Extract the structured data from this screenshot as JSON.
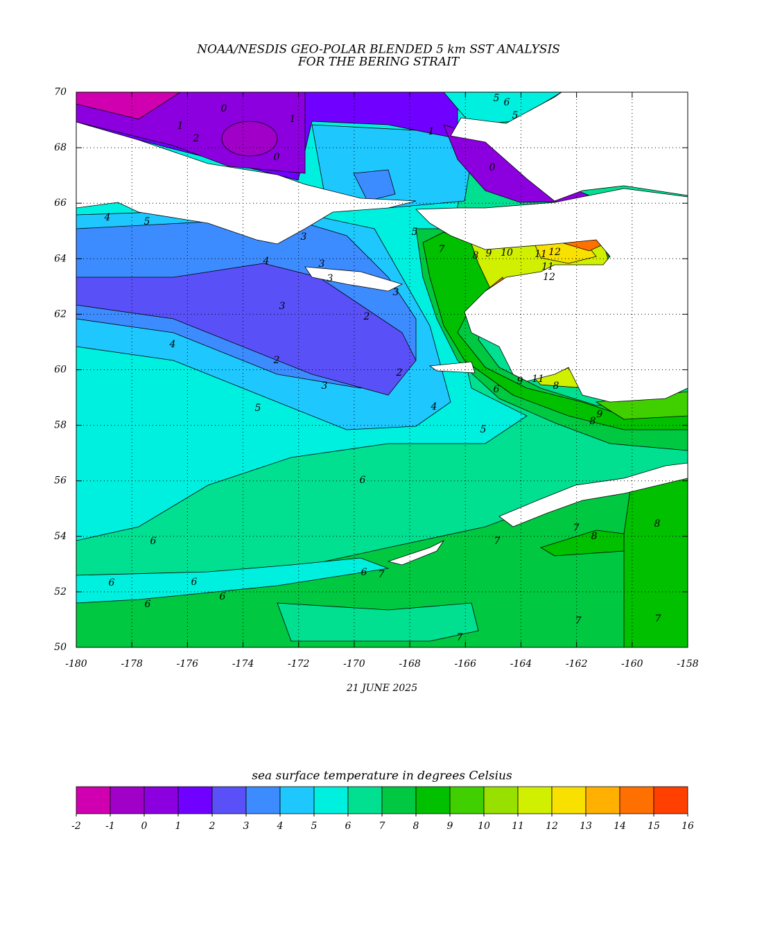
{
  "chart_data": {
    "type": "contour_map",
    "title": "NOAA/NESDIS GEO-POLAR BLENDED 5 km SST ANALYSIS",
    "subtitle": "FOR THE BERING STRAIT",
    "date": "21 JUNE 2025",
    "xlim": [
      -180,
      -158
    ],
    "ylim": [
      50,
      70
    ],
    "xticks": [
      -180,
      -178,
      -176,
      -174,
      -172,
      -170,
      -168,
      -166,
      -164,
      -162,
      -160,
      -158
    ],
    "yticks": [
      50,
      52,
      54,
      56,
      58,
      60,
      62,
      64,
      66,
      68,
      70
    ],
    "grid": true,
    "colorbar": {
      "label": "sea surface temperature in degrees Celsius",
      "levels": [
        -2,
        -1,
        0,
        1,
        2,
        3,
        4,
        5,
        6,
        7,
        8,
        9,
        10,
        11,
        12,
        13,
        14,
        15,
        16
      ],
      "colors": [
        "#d000b0",
        "#a000c8",
        "#8c00e0",
        "#7000ff",
        "#5a50f8",
        "#3c8cff",
        "#1ec8ff",
        "#00f0e0",
        "#00e090",
        "#00c840",
        "#00c000",
        "#40d000",
        "#98e000",
        "#d0f000",
        "#f8e000",
        "#ffb000",
        "#ff7000",
        "#ff4000"
      ]
    },
    "contour_labels": [
      0,
      1,
      1,
      2,
      0,
      1,
      5,
      6,
      5,
      0,
      4,
      5,
      3,
      4,
      3,
      3,
      3,
      3,
      2,
      4,
      2,
      2,
      3,
      4,
      5,
      5,
      6,
      6,
      6,
      6,
      6,
      6,
      6,
      7,
      7,
      7,
      8,
      8,
      7,
      7,
      7,
      5,
      7,
      8,
      9,
      10,
      11,
      12,
      11,
      12,
      9,
      11,
      8,
      6,
      9,
      8
    ]
  }
}
